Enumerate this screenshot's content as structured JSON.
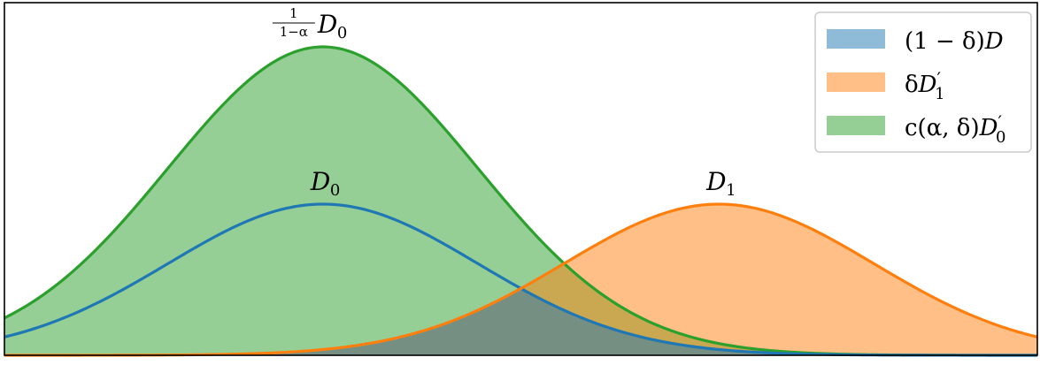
{
  "chart_data": {
    "type": "area",
    "title": "",
    "xlabel": "",
    "ylabel": "",
    "xlim": [
      -3.5,
      8.5
    ],
    "ylim": [
      0,
      1.0
    ],
    "grid": false,
    "axes_ticks": false,
    "legend_placement": "top-right",
    "curves": [
      {
        "id": "d0_scaled",
        "kind": "gaussian",
        "mean": 0.2,
        "std": 1.8,
        "peak": 1.0,
        "color": "#2ca02c"
      },
      {
        "id": "d0",
        "kind": "gaussian",
        "mean": 0.2,
        "std": 1.8,
        "peak": 0.49,
        "color": "#1f77b4"
      },
      {
        "id": "d1",
        "kind": "gaussian",
        "mean": 4.8,
        "std": 1.8,
        "peak": 0.49,
        "color": "#ff7f0e"
      }
    ],
    "filled_areas": [
      {
        "name": "c(α,δ)D′₀",
        "under": "d0_scaled",
        "color": "#2ca02c",
        "alpha": 0.5
      },
      {
        "name": "δD′₁",
        "under": "d1",
        "color": "#ff7f0e",
        "alpha": 0.5
      },
      {
        "name": "(1−δ)D",
        "under": "min(d0,d1)",
        "color": "#1f77b4",
        "alpha": 0.5
      }
    ],
    "curve_labels": [
      {
        "for": "d0_scaled",
        "numerator": "1",
        "denominator": "1−α",
        "main": "D",
        "subscript": "0"
      },
      {
        "for": "d0",
        "main": "D",
        "subscript": "0"
      },
      {
        "for": "d1",
        "main": "D",
        "subscript": "1"
      }
    ],
    "legend": [
      {
        "label_prefix": "(1 − δ)",
        "label_main": "D",
        "label_sub": "",
        "label_prime": "",
        "color": "#1f77b4"
      },
      {
        "label_prefix": "δ",
        "label_main": "D",
        "label_sub": "1",
        "label_prime": "′",
        "color": "#ff7f0e"
      },
      {
        "label_prefix": "c(α, δ)",
        "label_main": "D",
        "label_sub": "0",
        "label_prime": "′",
        "color": "#2ca02c"
      }
    ]
  }
}
